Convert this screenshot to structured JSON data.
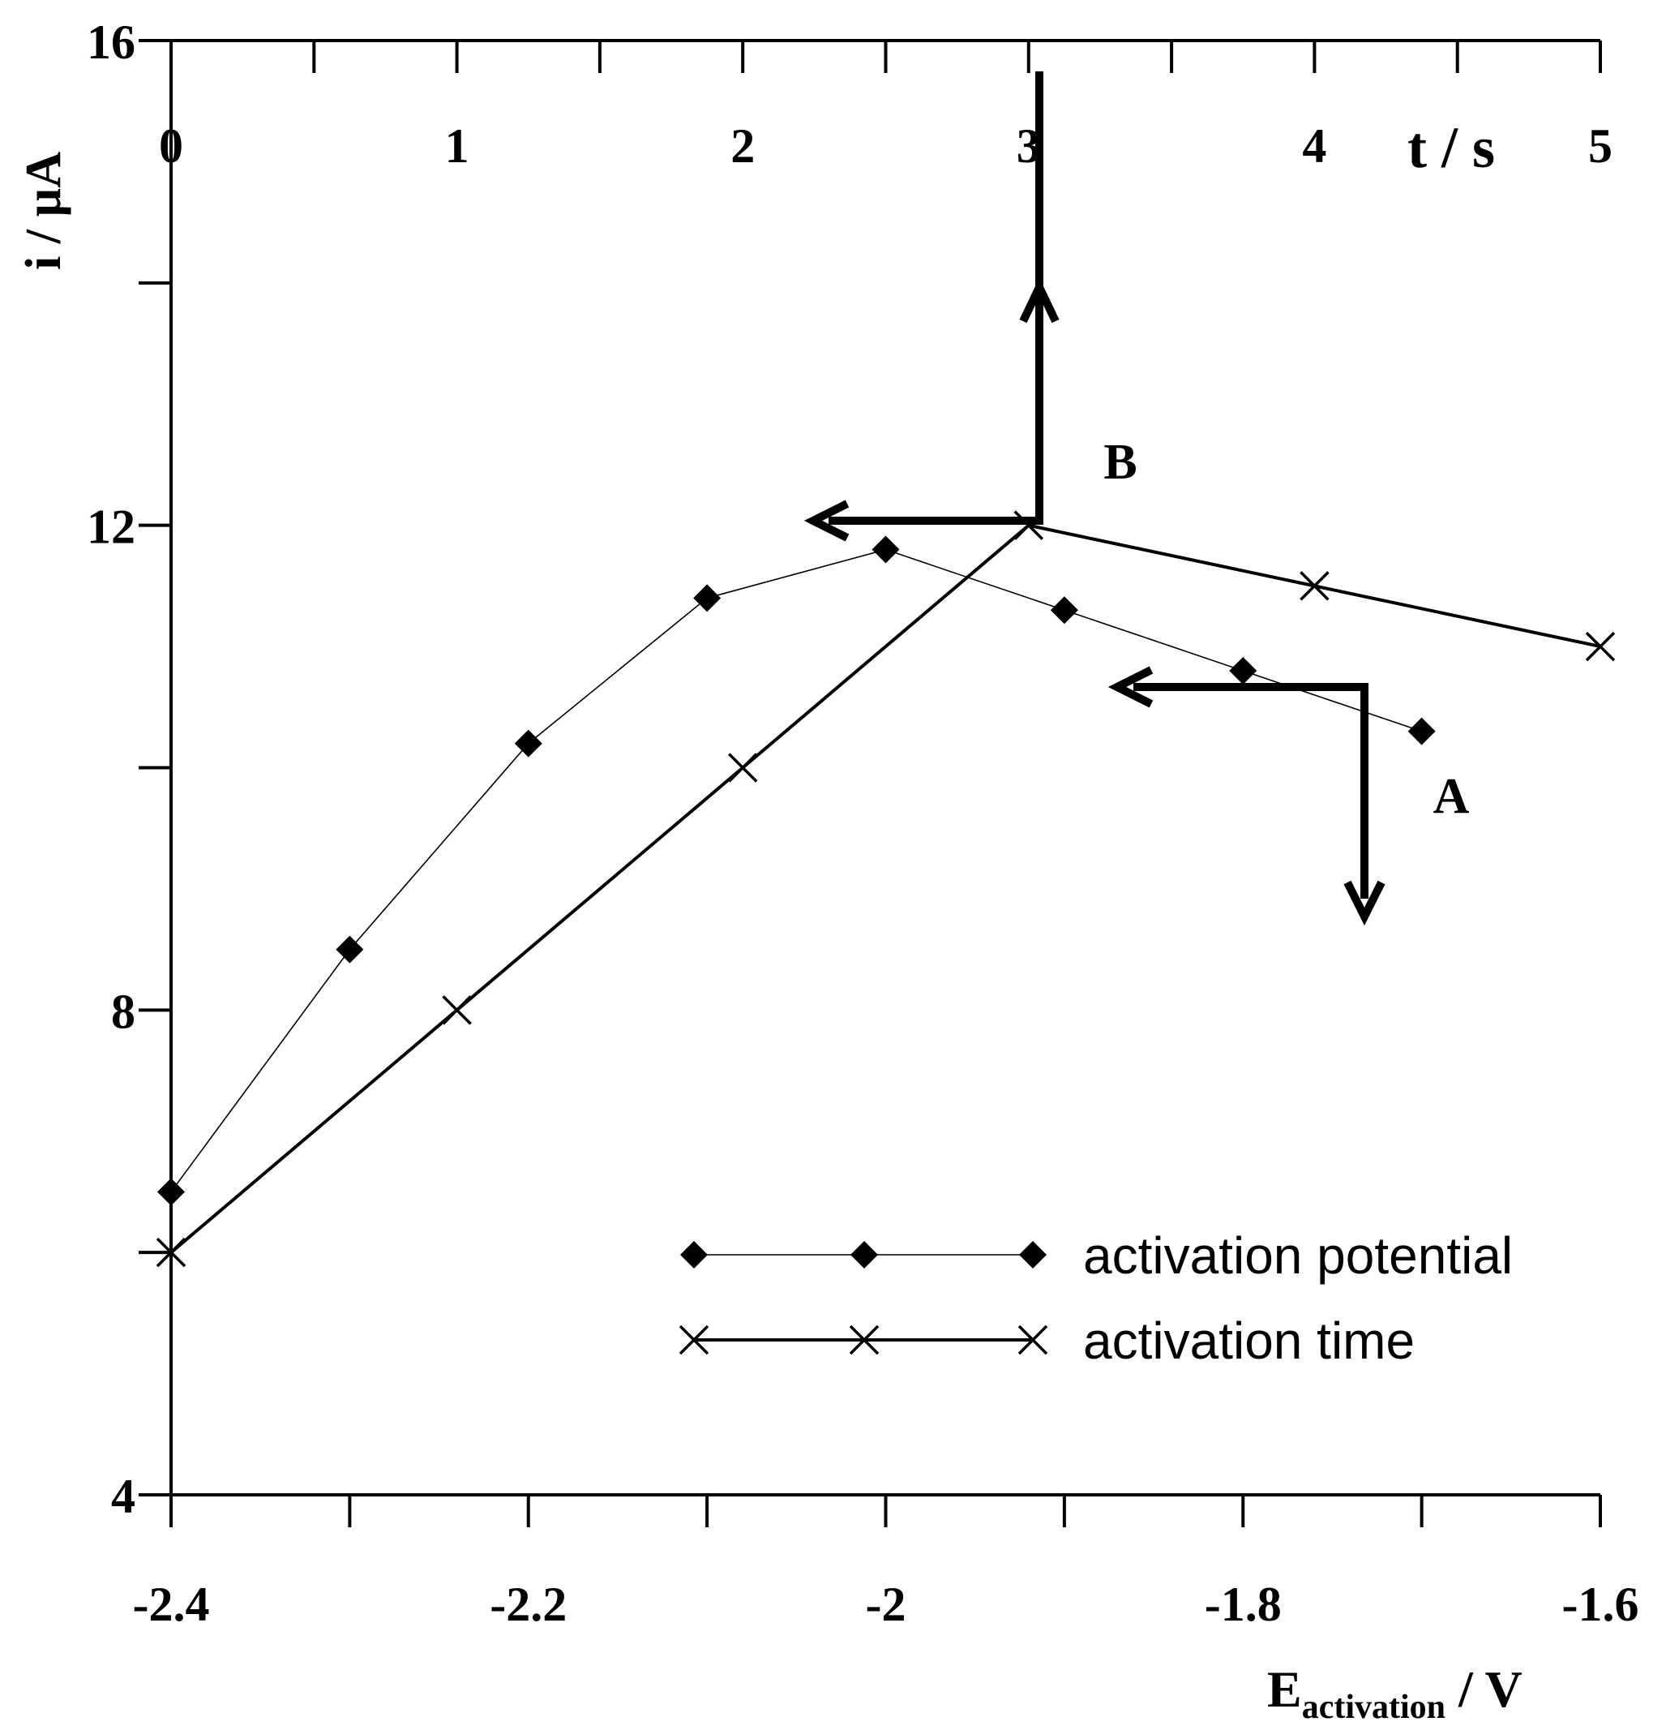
{
  "chart_data": {
    "type": "line",
    "y_axis": {
      "label": "i / µA",
      "range": [
        4,
        16
      ],
      "labeled_ticks": [
        4,
        8,
        12,
        16
      ],
      "tick_labels": [
        "4",
        "8",
        "12",
        "16"
      ],
      "minor_step": 2
    },
    "bottom_axis": {
      "label_main": "E",
      "label_sub": "activation",
      "label_unit": " / V",
      "range": [
        -2.4,
        -1.6
      ],
      "labeled_ticks": [
        -2.4,
        -2.2,
        -2.0,
        -1.8,
        -1.6
      ],
      "tick_labels": [
        "-2.4",
        "-2.2",
        "-2",
        "-1.8",
        "-1.6"
      ],
      "minor_step": 0.1
    },
    "top_axis": {
      "label": "t / s",
      "range": [
        0,
        5
      ],
      "labeled_ticks": [
        0,
        1,
        2,
        3,
        4,
        5
      ],
      "tick_labels": [
        "0",
        "1",
        "2",
        "3",
        "4",
        "5"
      ],
      "minor_step": 0.5
    },
    "series": [
      {
        "name": "activation potential",
        "axis": "bottom",
        "marker": "diamond",
        "color": "#000000",
        "x": [
          -2.4,
          -2.3,
          -2.2,
          -2.1,
          -2.0,
          -1.9,
          -1.8,
          -1.7
        ],
        "y": [
          6.5,
          8.5,
          10.2,
          11.4,
          11.8,
          11.3,
          10.8,
          10.3
        ]
      },
      {
        "name": "activation time",
        "axis": "top",
        "marker": "x",
        "color": "#000000",
        "x": [
          0,
          1,
          2,
          3,
          4,
          5
        ],
        "y": [
          6.0,
          8.0,
          10.0,
          12.0,
          11.5,
          11.0
        ]
      }
    ],
    "annotations": [
      {
        "label": "A"
      },
      {
        "label": "B"
      }
    ],
    "legend": {
      "position": "bottom-right"
    }
  }
}
